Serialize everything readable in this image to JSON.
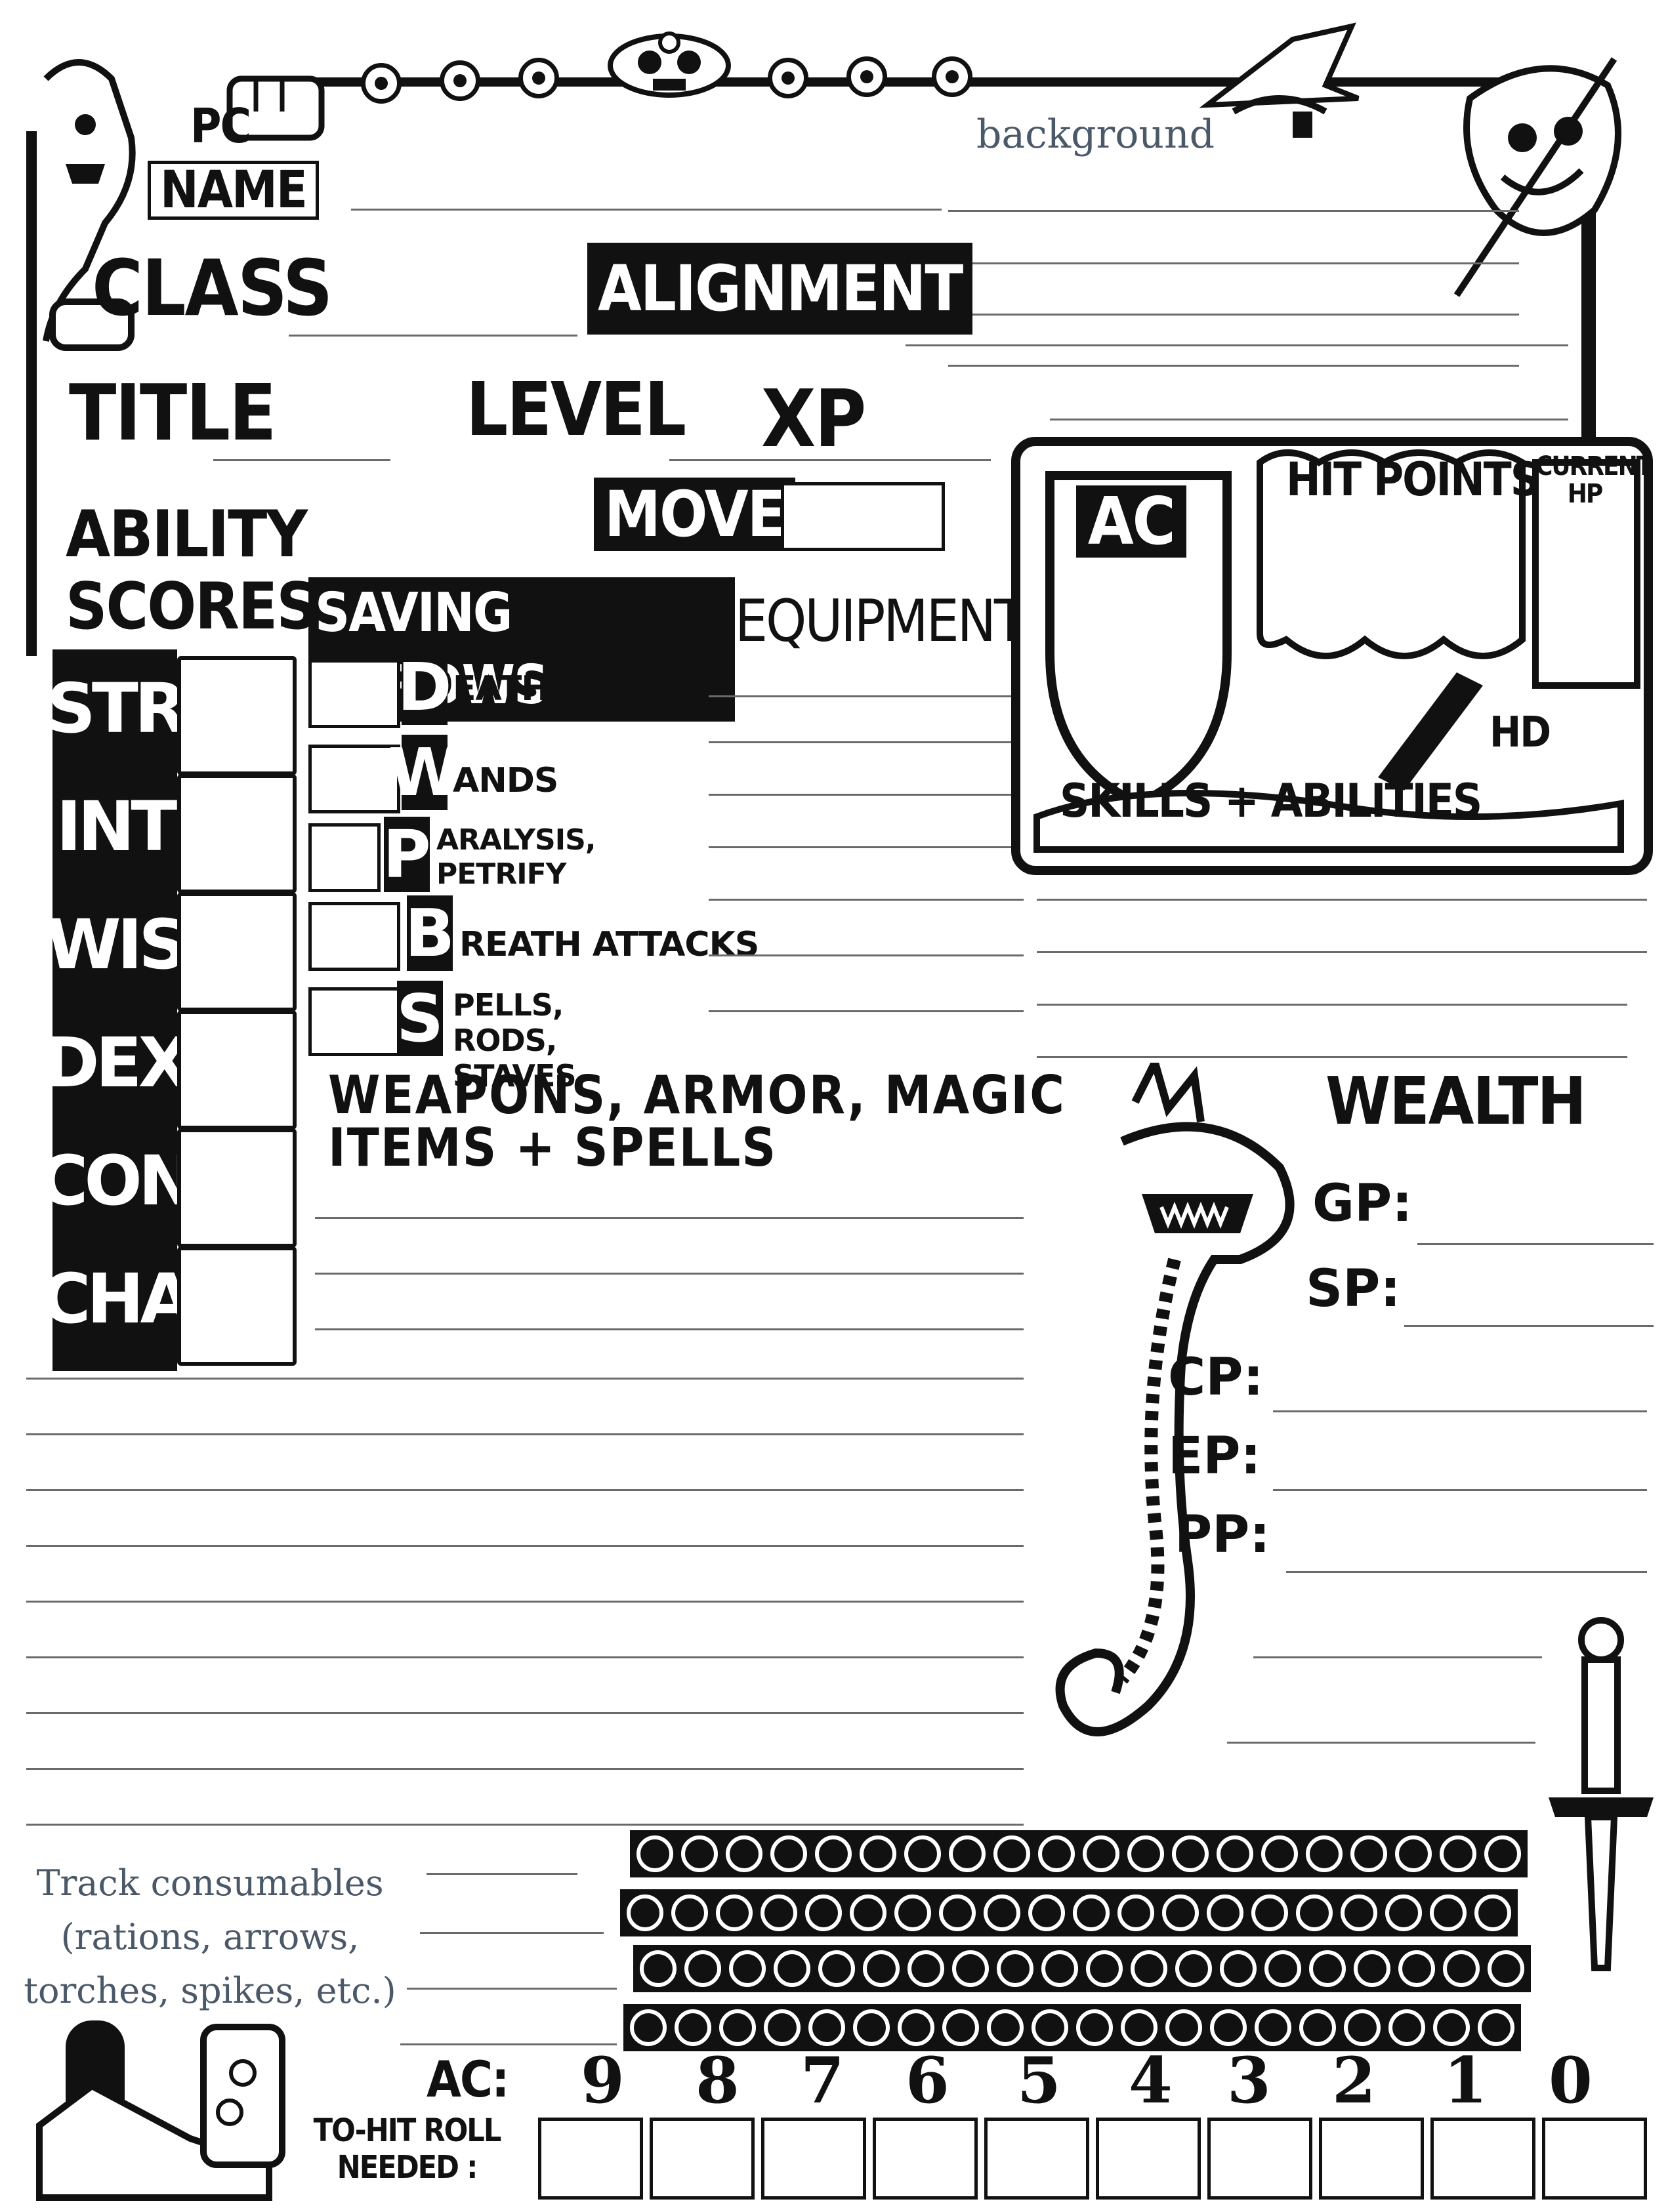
{
  "header": {
    "pc": "PC",
    "name_label": "NAME",
    "class_label": "CLASS",
    "alignment_label": "ALIGNMENT",
    "title_label": "TITLE",
    "level_label": "LEVEL",
    "xp_label": "XP",
    "move_label": "MOVE",
    "background_label": "background"
  },
  "abilities": {
    "heading": "ABILITY SCORES",
    "stats": [
      "STR",
      "INT",
      "WIS",
      "DEX",
      "CON",
      "CHA"
    ]
  },
  "saving_throws": {
    "heading": "SAVING THROWS",
    "items": [
      {
        "letter": "D",
        "label": "EATH, POISON"
      },
      {
        "letter": "W",
        "label": "ANDS"
      },
      {
        "letter": "P",
        "label": "ARALYSIS, PETRIFY"
      },
      {
        "letter": "B",
        "label": "REATH ATTACKS"
      },
      {
        "letter": "S",
        "label": "PELLS, RODS, STAVES"
      }
    ]
  },
  "equipment": {
    "heading": "EQUIPMENT"
  },
  "combat": {
    "ac_label": "AC",
    "hit_points_label": "HIT POINTS",
    "current_hp_label": "CURRENT HP",
    "hd_label": "HD",
    "skills_label": "SKILLS + ABILITIES"
  },
  "weapons": {
    "heading": "WEAPONS, ARMOR, MAGIC ITEMS + SPELLS"
  },
  "wealth": {
    "heading": "WEALTH",
    "coins": [
      "GP:",
      "SP:",
      "CP:",
      "EP:",
      "PP:"
    ]
  },
  "consumables": {
    "note": "Track consumables (rations, arrows, torches, spikes, etc.)",
    "rows": 4,
    "cells_per_row": 20
  },
  "to_hit": {
    "ac_label": "AC:",
    "roll_label": "TO-HIT ROLL NEEDED :",
    "ac_values": [
      "9",
      "8",
      "7",
      "6",
      "5",
      "4",
      "3",
      "2",
      "1",
      "0"
    ]
  }
}
